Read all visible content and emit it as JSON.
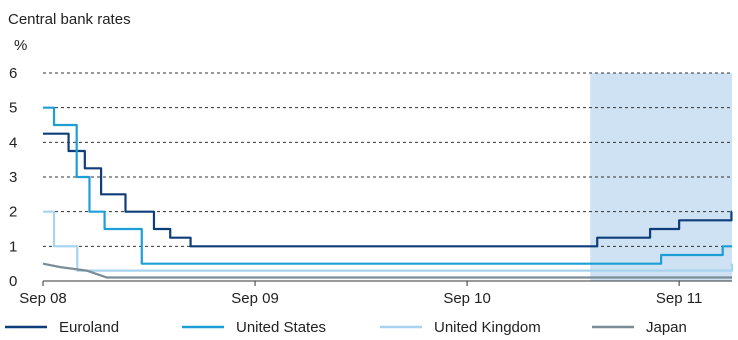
{
  "chart_data": {
    "type": "line",
    "title": "Central bank rates",
    "ylabel": "%",
    "xlabel": "",
    "ylim": [
      0,
      6
    ],
    "yticks": [
      0,
      1,
      2,
      3,
      4,
      5,
      6
    ],
    "xlim": [
      "2008-09-01",
      "2011-12-01"
    ],
    "xticks": [
      {
        "date": "2008-09-01",
        "label": "Sep 08"
      },
      {
        "date": "2009-09-01",
        "label": "Sep 09"
      },
      {
        "date": "2010-09-01",
        "label": "Sep 10"
      },
      {
        "date": "2011-09-01",
        "label": "Sep 11"
      }
    ],
    "grid": true,
    "legend_position": "bottom",
    "highlight": {
      "from": "2011-04-01",
      "to": "2011-12-01",
      "color": "#cfe2f3"
    },
    "series": [
      {
        "name": "Euroland",
        "color": "#0f3d7a",
        "step": true,
        "points": [
          [
            "2008-09-01",
            4.25
          ],
          [
            "2008-10-15",
            3.75
          ],
          [
            "2008-11-12",
            3.25
          ],
          [
            "2008-12-10",
            2.5
          ],
          [
            "2009-01-21",
            2.0
          ],
          [
            "2009-03-11",
            1.5
          ],
          [
            "2009-04-08",
            1.25
          ],
          [
            "2009-05-13",
            1.0
          ],
          [
            "2011-04-13",
            1.25
          ],
          [
            "2011-07-13",
            1.5
          ],
          [
            "2011-09-01",
            1.75
          ],
          [
            "2011-11-30",
            2.0
          ]
        ]
      },
      {
        "name": "United States",
        "color": "#1d9fd6",
        "step": true,
        "points": [
          [
            "2008-09-01",
            5.0
          ],
          [
            "2008-09-20",
            4.5
          ],
          [
            "2008-10-29",
            3.0
          ],
          [
            "2008-11-20",
            2.0
          ],
          [
            "2008-12-16",
            1.5
          ],
          [
            "2009-02-18",
            0.5
          ],
          [
            "2011-08-01",
            0.75
          ],
          [
            "2011-11-15",
            1.0
          ]
        ]
      },
      {
        "name": "United Kingdom",
        "color": "#a6d4ee",
        "step": true,
        "points": [
          [
            "2008-09-01",
            2.0
          ],
          [
            "2008-09-20",
            1.0
          ],
          [
            "2008-10-30",
            0.3
          ],
          [
            "2011-11-01",
            0.3
          ],
          [
            "2011-12-01",
            0.5
          ]
        ]
      },
      {
        "name": "Japan",
        "color": "#7a8c96",
        "step": false,
        "points": [
          [
            "2008-09-01",
            0.5
          ],
          [
            "2008-10-01",
            0.4
          ],
          [
            "2008-11-15",
            0.3
          ],
          [
            "2008-12-20",
            0.1
          ],
          [
            "2011-12-01",
            0.1
          ]
        ]
      }
    ]
  }
}
